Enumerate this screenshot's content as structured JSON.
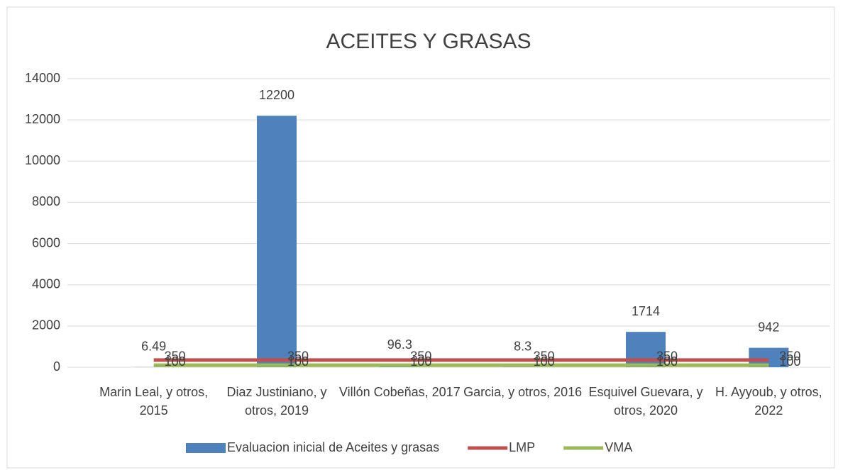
{
  "chart_data": {
    "type": "bar_line",
    "title": "ACEITES Y GRASAS",
    "categories": [
      "Marin Leal, y otros, 2015",
      "Diaz Justiniano, y otros, 2019",
      "Villón Cobeñas, 2017",
      "Garcia, y otros, 2016",
      "Esquivel Guevara, y otros, 2020",
      "H. Ayyoub, y otros, 2022"
    ],
    "series": [
      {
        "name": "Evaluacion inicial de Aceites y grasas",
        "type": "bar",
        "color": "#4f81bd",
        "values": [
          6.49,
          12200,
          96.3,
          8.3,
          1714,
          942
        ]
      },
      {
        "name": "LMP",
        "type": "line",
        "color": "#c0504d",
        "values": [
          350,
          350,
          350,
          350,
          350,
          350
        ]
      },
      {
        "name": "VMA",
        "type": "line",
        "color": "#9bbb59",
        "values": [
          100,
          100,
          100,
          100,
          100,
          100
        ]
      }
    ],
    "ylim": [
      0,
      14000
    ],
    "yticks": [
      0,
      2000,
      4000,
      6000,
      8000,
      10000,
      12000,
      14000
    ],
    "grid": true,
    "legend": "bottom"
  }
}
